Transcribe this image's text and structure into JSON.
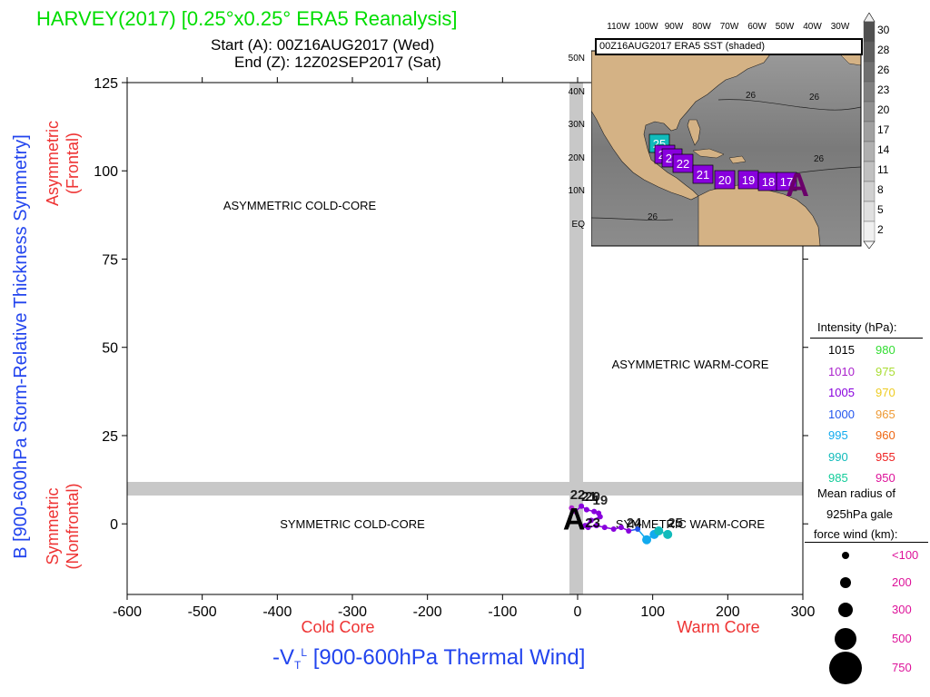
{
  "header": {
    "title": "HARVEY(2017) [0.25°x0.25° ERA5 Reanalysis]",
    "start": "Start (A): 00Z16AUG2017 (Wed)",
    "end": "End (Z): 12Z02SEP2017 (Sat)",
    "title_color": "#00dd00"
  },
  "axes": {
    "ylabel": "B [900-600hPa Storm-Relative Thickness Symmetry]",
    "xlabel": "-V",
    "xlabel_sub": "T",
    "xlabel_sup": "L",
    "xlabel_rest": " [900-600hPa Thermal Wind]",
    "cold_core": "Cold Core",
    "warm_core": "Warm Core",
    "asym_top": "Asymmetric",
    "asym_bottom": "(Frontal)",
    "sym_top": "Symmetric",
    "sym_bottom": "(Nonfrontal)",
    "label_color_blue": "#2244ee",
    "label_color_red": "#ee3333"
  },
  "quadrants": {
    "asym_cold": "ASYMMETRIC COLD-CORE",
    "asym_warm": "ASYMMETRIC WARM-CORE",
    "sym_cold": "SYMMETRIC COLD-CORE",
    "sym_warm": "SYMMETRIC WARM-CORE"
  },
  "legend": {
    "intensity_title": "Intensity (hPa):",
    "intensity": [
      {
        "a": "1015",
        "ac": "#000000",
        "b": "980",
        "bc": "#33dd33"
      },
      {
        "a": "1010",
        "ac": "#aa22cc",
        "b": "975",
        "bc": "#aadd33"
      },
      {
        "a": "1005",
        "ac": "#8800dd",
        "b": "970",
        "bc": "#eecc22"
      },
      {
        "a": "1000",
        "ac": "#2255ee",
        "b": "965",
        "bc": "#ee9933"
      },
      {
        "a": "995",
        "ac": "#11aaee",
        "b": "960",
        "bc": "#ee6611"
      },
      {
        "a": "990",
        "ac": "#11bbbb",
        "b": "955",
        "bc": "#ee2222"
      },
      {
        "a": "985",
        "ac": "#11cc99",
        "b": "950",
        "bc": "#dd1199"
      }
    ],
    "radius_title_1": "Mean radius of",
    "radius_title_2": "925hPa gale",
    "radius_title_3": "force wind (km):",
    "radius": [
      {
        "label": "<100"
      },
      {
        "label": "200"
      },
      {
        "label": "300"
      },
      {
        "label": "500"
      },
      {
        "label": "750"
      }
    ],
    "radius_color": "#dd1199"
  },
  "inset": {
    "title": "00Z16AUG2017 ERA5 SST (shaded)",
    "lon_labels": [
      "110W",
      "100W",
      "90W",
      "80W",
      "70W",
      "60W",
      "50W",
      "40W",
      "30W"
    ],
    "lat_labels": [
      "50N",
      "40N",
      "30N",
      "20N",
      "10N",
      "EQ"
    ],
    "contour_labels": [
      "26",
      "26",
      "26",
      "26",
      "26"
    ],
    "colorbar": [
      "30",
      "28",
      "26",
      "23",
      "20",
      "17",
      "14",
      "11",
      "8",
      "5",
      "2"
    ],
    "track_labels": [
      "25",
      "24",
      "23",
      "22",
      "21",
      "20",
      "19",
      "18",
      "17",
      "A"
    ],
    "start_marker": "A"
  },
  "chart_data": {
    "type": "scatter",
    "title": "HARVEY(2017) [0.25°x0.25° ERA5 Reanalysis]",
    "xlabel": "-VTL [900-600hPa Thermal Wind]",
    "ylabel": "B [900-600hPa Storm-Relative Thickness Symmetry]",
    "xlim": [
      -600,
      300
    ],
    "ylim": [
      -20,
      125
    ],
    "xticks": [
      -600,
      -500,
      -400,
      -300,
      -200,
      -100,
      0,
      100,
      200,
      300
    ],
    "yticks": [
      0,
      25,
      50,
      75,
      100,
      125
    ],
    "grid": false,
    "track": [
      {
        "x": -8,
        "y": 4.5,
        "color": "#aa22cc"
      },
      {
        "x": -3,
        "y": 3.5,
        "color": "#aa22cc"
      },
      {
        "x": 5,
        "y": 5,
        "color": "#8800dd"
      },
      {
        "x": 12,
        "y": 4,
        "color": "#8800dd"
      },
      {
        "x": 22,
        "y": 3.5,
        "color": "#8800dd"
      },
      {
        "x": 28,
        "y": 3,
        "color": "#8800dd"
      },
      {
        "x": 30,
        "y": 2,
        "color": "#8800dd"
      },
      {
        "x": 18,
        "y": 1,
        "color": "#8800dd"
      },
      {
        "x": 10,
        "y": -0.5,
        "color": "#8800dd"
      },
      {
        "x": 14,
        "y": -1,
        "color": "#8800dd"
      },
      {
        "x": 25,
        "y": -0.5,
        "color": "#8800dd"
      },
      {
        "x": 36,
        "y": -1,
        "color": "#8800dd"
      },
      {
        "x": 48,
        "y": -1.5,
        "color": "#8800dd"
      },
      {
        "x": 58,
        "y": -1,
        "color": "#8800dd"
      },
      {
        "x": 68,
        "y": -2,
        "color": "#8800dd"
      },
      {
        "x": 80,
        "y": -1.5,
        "color": "#2255ee"
      },
      {
        "x": 92,
        "y": -4.5,
        "color": "#11aaee"
      },
      {
        "x": 102,
        "y": -3,
        "color": "#11aaee"
      },
      {
        "x": 108,
        "y": -2,
        "color": "#11bbbb"
      },
      {
        "x": 120,
        "y": -3,
        "color": "#11bbbb"
      }
    ],
    "track_point_labels": [
      {
        "text": "22",
        "x": -10,
        "y": 7
      },
      {
        "text": "21",
        "x": 5,
        "y": 6.5
      },
      {
        "text": "20",
        "x": 10,
        "y": 6.5
      },
      {
        "text": "19",
        "x": 20,
        "y": 5.5
      },
      {
        "text": "23",
        "x": 10,
        "y": -1
      },
      {
        "text": "24",
        "x": 65,
        "y": -1
      },
      {
        "text": "25",
        "x": 120,
        "y": -1
      }
    ],
    "start_label": {
      "text": "A",
      "x": -5,
      "y": 1
    },
    "band_color": "#c8c8c8"
  }
}
